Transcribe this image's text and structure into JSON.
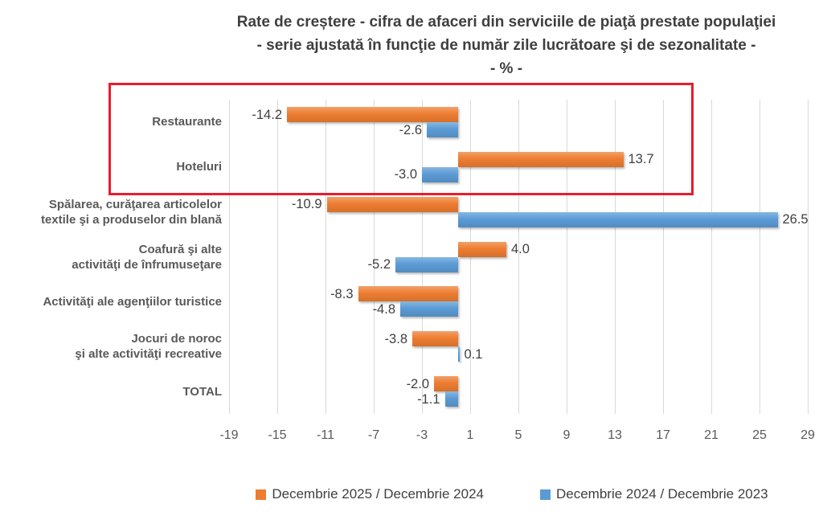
{
  "title": {
    "line1": "Rate de creștere - cifra de afaceri din serviciile de piaţă prestate populaţiei",
    "line2": "- serie ajustată în funcţie de număr zile lucrătoare şi de sezonalitate -",
    "line3": "- % -"
  },
  "colors": {
    "orange": "#ED7D31",
    "blue": "#5B9BD5",
    "highlight_box": "#EC1B2C",
    "gridline": "#D9D9D9",
    "title_text": "#3F3F3F",
    "label_text": "#595959",
    "value_text": "#404040"
  },
  "chart_data": {
    "type": "bar",
    "orientation": "horizontal",
    "title": "Rate de creștere - cifra de afaceri din serviciile de piaţă prestate populaţiei",
    "subtitle": "- serie ajustată în funcţie de număr zile lucrătoare şi de sezonalitate -",
    "unit_label": "- % -",
    "categories": [
      "Restaurante",
      "Hoteluri",
      "Spălarea, curăţarea articolelor\ntextile şi a produselor din blană",
      "Coafură şi alte\nactivităţi de înfrumuseţare",
      "Activităţi ale agenţiilor turistice",
      "Jocuri de noroc\nşi alte activităţi recreative",
      "TOTAL"
    ],
    "series": [
      {
        "name": "Decembrie 2025 / Decembrie 2024",
        "color": "#ED7D31",
        "values": [
          -14.2,
          13.7,
          -10.9,
          4.0,
          -8.3,
          -3.8,
          -2.0
        ]
      },
      {
        "name": "Decembrie 2024 / Decembrie 2023",
        "color": "#5B9BD5",
        "values": [
          -2.6,
          -3.0,
          26.5,
          -5.2,
          -4.8,
          0.1,
          -1.1
        ]
      }
    ],
    "xlim": [
      -19,
      29
    ],
    "x_ticks": [
      -19,
      -15,
      -11,
      -7,
      -3,
      1,
      5,
      9,
      13,
      17,
      21,
      25,
      29
    ],
    "grid": true,
    "legend_position": "bottom",
    "annotation": {
      "type": "highlight-box",
      "categories": [
        "Restaurante",
        "Hoteluri"
      ],
      "color": "#EC1B2C"
    }
  }
}
